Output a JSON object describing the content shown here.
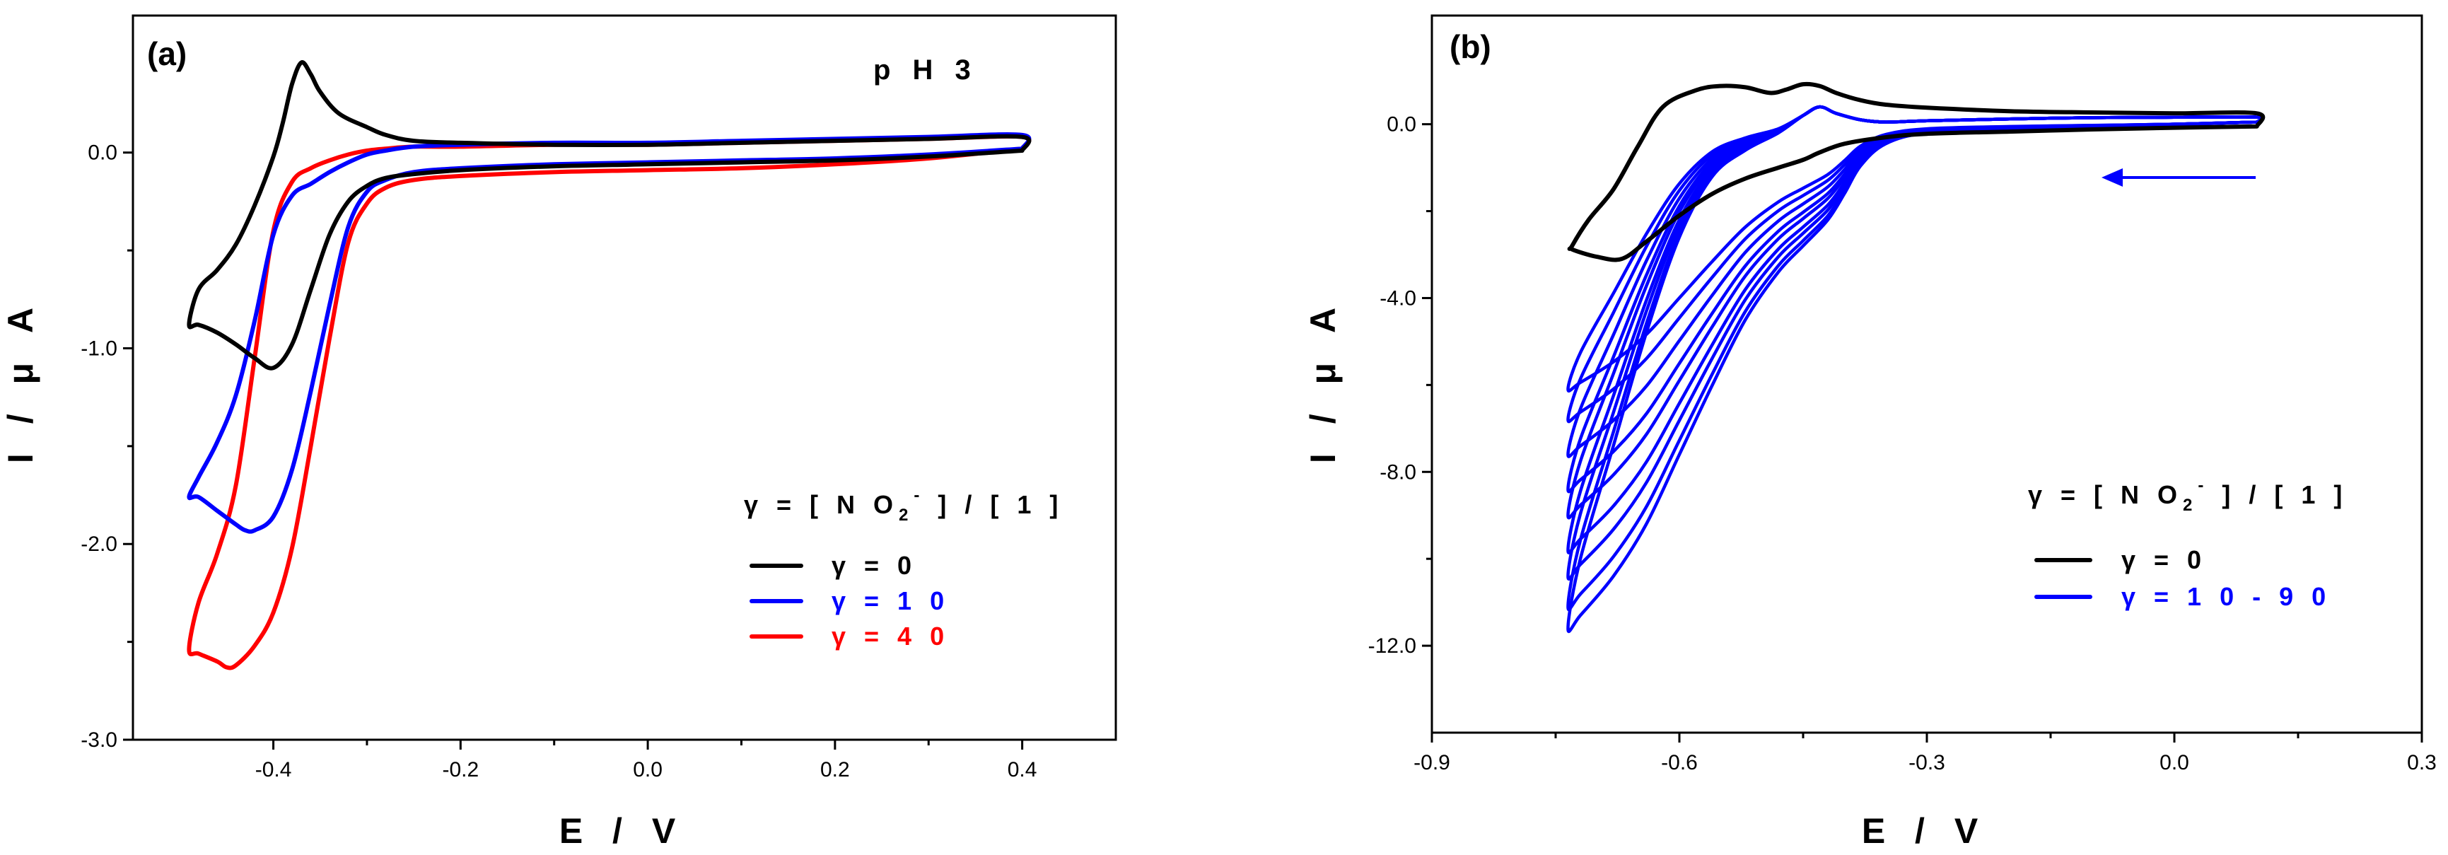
{
  "chart_data": [
    {
      "type": "line",
      "panel_label": "(a)",
      "annotation": "p H 3",
      "xlabel": "E / V",
      "ylabel": "I / μ A",
      "xlim": [
        -0.55,
        0.5
      ],
      "ylim": [
        -3.0,
        0.7
      ],
      "x_ticks": [
        -0.4,
        -0.2,
        0.0,
        0.2,
        0.4
      ],
      "x_tick_labels": [
        "-0.4",
        "-0.2",
        "0.0",
        "0.2",
        "0.4"
      ],
      "y_ticks": [
        0.0,
        -1.0,
        -2.0,
        -3.0
      ],
      "y_tick_labels": [
        "0.0",
        "-1.0",
        "-2.0",
        "-3.0"
      ],
      "legend": {
        "title_parts": [
          "γ = [ N O",
          "2",
          "-",
          " ] / [ 1 ]"
        ],
        "entries": [
          {
            "label": "γ = 0",
            "color": "#000000"
          },
          {
            "label": "γ = 1 0",
            "color": "#0000ff"
          },
          {
            "label": "γ = 4 0",
            "color": "#ff0000"
          }
        ]
      },
      "series": [
        {
          "name": "γ = 0",
          "color": "#000000",
          "x": [
            0.4,
            0.3,
            0.2,
            0.1,
            0.0,
            -0.1,
            -0.2,
            -0.25,
            -0.28,
            -0.3,
            -0.32,
            -0.34,
            -0.36,
            -0.38,
            -0.4,
            -0.42,
            -0.44,
            -0.46,
            -0.48,
            -0.49,
            -0.48,
            -0.46,
            -0.44,
            -0.42,
            -0.4,
            -0.39,
            -0.38,
            -0.37,
            -0.36,
            -0.35,
            -0.33,
            -0.3,
            -0.28,
            -0.25,
            -0.2,
            -0.1,
            0.0,
            0.1,
            0.2,
            0.3,
            0.4,
            0.4
          ],
          "y": [
            0.01,
            -0.02,
            -0.04,
            -0.05,
            -0.06,
            -0.07,
            -0.09,
            -0.11,
            -0.13,
            -0.17,
            -0.25,
            -0.42,
            -0.7,
            -0.98,
            -1.1,
            -1.05,
            -0.98,
            -0.92,
            -0.88,
            -0.88,
            -0.7,
            -0.6,
            -0.47,
            -0.27,
            -0.02,
            0.15,
            0.35,
            0.46,
            0.4,
            0.31,
            0.2,
            0.13,
            0.09,
            0.06,
            0.05,
            0.04,
            0.04,
            0.05,
            0.06,
            0.07,
            0.08,
            0.01
          ]
        },
        {
          "name": "γ = 1 0",
          "color": "#0000ff",
          "x": [
            0.4,
            0.3,
            0.2,
            0.1,
            0.0,
            -0.1,
            -0.2,
            -0.25,
            -0.28,
            -0.3,
            -0.32,
            -0.34,
            -0.36,
            -0.38,
            -0.4,
            -0.42,
            -0.43,
            -0.44,
            -0.46,
            -0.48,
            -0.49,
            -0.48,
            -0.46,
            -0.44,
            -0.42,
            -0.4,
            -0.38,
            -0.36,
            -0.34,
            -0.32,
            -0.3,
            -0.28,
            -0.25,
            -0.2,
            -0.1,
            0.0,
            0.1,
            0.2,
            0.3,
            0.4,
            0.4
          ],
          "y": [
            0.02,
            -0.01,
            -0.03,
            -0.04,
            -0.05,
            -0.06,
            -0.08,
            -0.1,
            -0.14,
            -0.2,
            -0.38,
            -0.78,
            -1.22,
            -1.62,
            -1.86,
            -1.93,
            -1.93,
            -1.9,
            -1.83,
            -1.76,
            -1.76,
            -1.66,
            -1.48,
            -1.24,
            -0.86,
            -0.42,
            -0.22,
            -0.16,
            -0.1,
            -0.05,
            -0.01,
            0.01,
            0.03,
            0.04,
            0.05,
            0.05,
            0.06,
            0.07,
            0.08,
            0.09,
            0.02
          ]
        },
        {
          "name": "γ = 4 0",
          "color": "#ff0000",
          "x": [
            0.4,
            0.3,
            0.2,
            0.1,
            0.0,
            -0.1,
            -0.2,
            -0.25,
            -0.28,
            -0.3,
            -0.32,
            -0.34,
            -0.36,
            -0.38,
            -0.4,
            -0.42,
            -0.44,
            -0.45,
            -0.46,
            -0.48,
            -0.49,
            -0.48,
            -0.46,
            -0.44,
            -0.42,
            -0.4,
            -0.38,
            -0.36,
            -0.34,
            -0.32,
            -0.3,
            -0.28,
            -0.25,
            -0.2,
            -0.1,
            0.0,
            0.1,
            0.2,
            0.3,
            0.4,
            0.4
          ],
          "y": [
            0.02,
            -0.03,
            -0.06,
            -0.08,
            -0.09,
            -0.1,
            -0.12,
            -0.14,
            -0.18,
            -0.26,
            -0.46,
            -0.95,
            -1.5,
            -2.02,
            -2.35,
            -2.52,
            -2.62,
            -2.63,
            -2.6,
            -2.56,
            -2.54,
            -2.3,
            -2.05,
            -1.7,
            -1.05,
            -0.4,
            -0.15,
            -0.08,
            -0.04,
            -0.01,
            0.01,
            0.02,
            0.03,
            0.03,
            0.04,
            0.04,
            0.05,
            0.06,
            0.07,
            0.08,
            0.02
          ]
        }
      ]
    },
    {
      "type": "line",
      "panel_label": "(b)",
      "xlabel": "E / V",
      "ylabel": "I / μ A",
      "xlim": [
        -0.9,
        0.3
      ],
      "ylim": [
        -14.0,
        2.5
      ],
      "x_ticks": [
        -0.9,
        -0.6,
        -0.3,
        0.0,
        0.3
      ],
      "x_tick_labels": [
        "-0.9",
        "-0.6",
        "-0.3",
        "0.0",
        "0.3"
      ],
      "y_ticks": [
        0.0,
        -4.0,
        -8.0,
        -12.0
      ],
      "y_tick_labels": [
        "0.0",
        "-4.0",
        "-8.0",
        "-12.0"
      ],
      "scan_direction": "negative",
      "legend": {
        "title_parts": [
          "γ = [ N O",
          "2",
          "-",
          " ] / [ 1 ]"
        ],
        "entries": [
          {
            "label": "γ = 0",
            "color": "#000000"
          },
          {
            "label": "γ = 1 0 - 9 0",
            "color": "#0000ff"
          }
        ]
      },
      "series": [
        {
          "name": "γ = 0",
          "color": "#000000",
          "x": [
            0.1,
            0.0,
            -0.1,
            -0.2,
            -0.3,
            -0.35,
            -0.4,
            -0.43,
            -0.45,
            -0.48,
            -0.52,
            -0.56,
            -0.6,
            -0.64,
            -0.67,
            -0.7,
            -0.73,
            -0.73,
            -0.71,
            -0.68,
            -0.65,
            -0.62,
            -0.58,
            -0.55,
            -0.52,
            -0.49,
            -0.47,
            -0.45,
            -0.43,
            -0.41,
            -0.38,
            -0.35,
            -0.3,
            -0.2,
            -0.1,
            0.0,
            0.1,
            0.1
          ],
          "y": [
            -0.05,
            -0.08,
            -0.12,
            -0.17,
            -0.22,
            -0.3,
            -0.45,
            -0.65,
            -0.82,
            -1.0,
            -1.25,
            -1.6,
            -2.1,
            -2.7,
            -3.1,
            -3.05,
            -2.88,
            -2.8,
            -2.2,
            -1.5,
            -0.5,
            0.4,
            0.78,
            0.88,
            0.85,
            0.72,
            0.8,
            0.92,
            0.88,
            0.72,
            0.55,
            0.45,
            0.38,
            0.3,
            0.27,
            0.25,
            0.25,
            -0.05
          ]
        },
        {
          "name": "γ = 1 0 - 9 0",
          "color": "#0000ff",
          "family": {
            "count": 9,
            "start_potential": [
              -0.735,
              -0.735,
              -0.735,
              -0.735,
              -0.735,
              -0.735,
              -0.735,
              -0.735,
              -0.735
            ],
            "vertex_current": [
              -6.1,
              -6.8,
              -7.6,
              -8.4,
              -9.0,
              -9.8,
              -10.4,
              -11.1,
              -11.6
            ],
            "shoulder_current": [
              -1.8,
              -2.0,
              -2.2,
              -2.4,
              -2.6,
              -2.8,
              -3.0,
              -3.1,
              -3.2
            ]
          },
          "x": [
            0.1,
            0.0,
            -0.1,
            -0.2,
            -0.3,
            -0.35,
            -0.38,
            -0.4,
            -0.42,
            -0.45,
            -0.48,
            -0.52,
            -0.56,
            -0.6,
            -0.64,
            -0.68,
            -0.72,
            -0.735,
            -0.72,
            -0.68,
            -0.64,
            -0.6,
            -0.56,
            -0.52,
            -0.48,
            -0.45,
            -0.43,
            -0.41,
            -0.38,
            -0.35,
            -0.3,
            -0.2,
            -0.1,
            0.0,
            0.1,
            0.1
          ],
          "y": [
            0.05,
            0.0,
            -0.05,
            -0.1,
            -0.2,
            -0.45,
            -0.95,
            -1.6,
            -2.2,
            -2.8,
            -3.4,
            -4.5,
            -6.0,
            -7.6,
            -9.2,
            -10.4,
            -11.3,
            -11.6,
            -10.0,
            -7.4,
            -4.8,
            -2.6,
            -1.2,
            -0.6,
            -0.2,
            0.2,
            0.4,
            0.25,
            0.1,
            0.05,
            0.08,
            0.12,
            0.15,
            0.16,
            0.16,
            0.05
          ]
        }
      ]
    }
  ]
}
